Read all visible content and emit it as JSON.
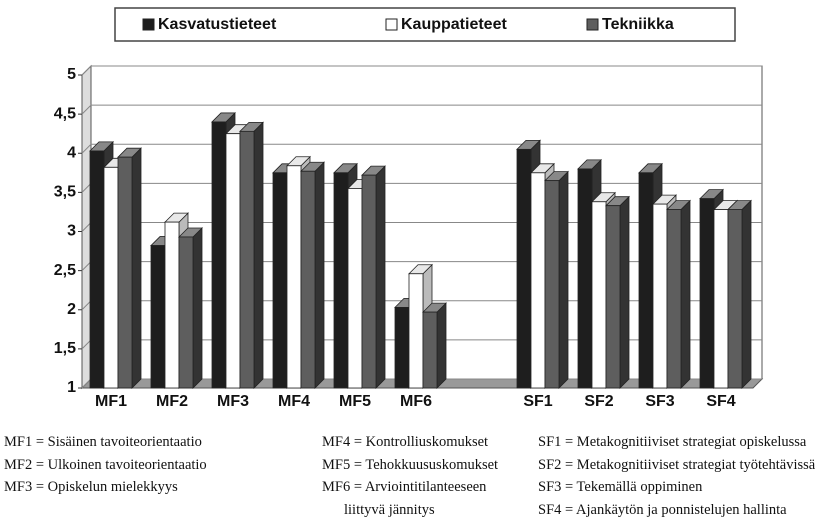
{
  "chart_data": {
    "type": "bar",
    "categories": [
      "MF1",
      "MF2",
      "MF3",
      "MF4",
      "MF5",
      "MF6",
      null,
      "SF1",
      "SF2",
      "SF3",
      "SF4"
    ],
    "series": [
      {
        "name": "Kasvatustieteet",
        "color": "#1e1e1e",
        "values": [
          4.03,
          2.82,
          4.4,
          3.75,
          3.75,
          2.03,
          null,
          4.05,
          3.8,
          3.75,
          3.42
        ]
      },
      {
        "name": "Kauppatieteet",
        "color": "#ffffff",
        "values": [
          3.82,
          3.12,
          4.25,
          3.84,
          3.55,
          2.46,
          null,
          3.75,
          3.38,
          3.35,
          3.28
        ]
      },
      {
        "name": "Tekniikka",
        "color": "#5e5e5e",
        "values": [
          3.95,
          2.93,
          4.28,
          3.77,
          3.72,
          1.97,
          null,
          3.65,
          3.33,
          3.28,
          3.28
        ]
      }
    ],
    "ylim": [
      1,
      5
    ],
    "yticks": [
      1,
      {
        "value": 1.5,
        "label": "1,5"
      },
      2,
      {
        "value": 2.5,
        "label": "2,5"
      },
      3,
      {
        "value": 3.5,
        "label": "3,5"
      },
      4,
      {
        "value": 4.5,
        "label": "4,5"
      },
      5
    ],
    "grid": true,
    "legend": "top"
  },
  "notes": [
    [
      "MF1 = Sisäinen tavoiteorientaatio",
      "MF2 = Ulkoinen tavoiteorientaatio",
      "MF3 = Opiskelun mielekkyys"
    ],
    [
      "MF4 = Kontrolliuskomukset",
      "MF5 = Tehokkuususkomukset",
      "MF6 = Arviointitilanteeseen",
      "liittyvä jännitys"
    ],
    [
      "SF1 = Metakognitiiviset strategiat opiskelussa",
      "SF2 = Metakognitiiviset strategiat työtehtävissä",
      "SF3 = Tekemällä oppiminen",
      "SF4 = Ajankäytön ja ponnistelujen hallinta"
    ]
  ]
}
